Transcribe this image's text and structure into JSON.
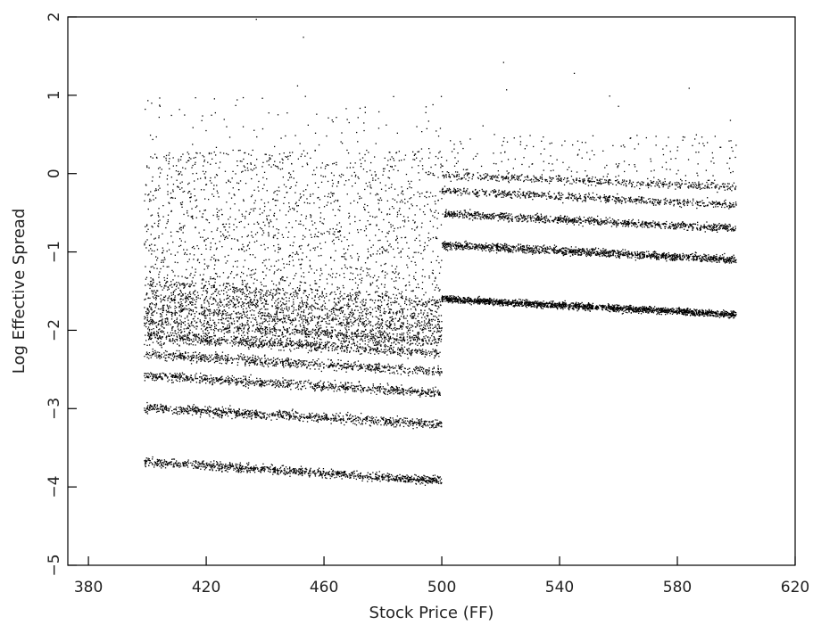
{
  "chart_data": {
    "type": "scatter",
    "title": "",
    "xlabel": "Stock Price (FF)",
    "ylabel": "Log Effective Spread",
    "xlim": [
      373,
      620
    ],
    "ylim": [
      -5,
      2
    ],
    "x_ticks": [
      380,
      420,
      460,
      500,
      540,
      580,
      620
    ],
    "y_ticks": [
      -5,
      -4,
      -3,
      -2,
      -1,
      0,
      1,
      2
    ],
    "grid": false,
    "legend": "none",
    "point_color": "#000000",
    "bands": [
      {
        "x_range": [
          399,
          500
        ],
        "y_start": -3.68,
        "y_end": -3.92,
        "density": 0.55,
        "spread": 0.028
      },
      {
        "x_range": [
          399,
          500
        ],
        "y_start": -2.99,
        "y_end": -3.2,
        "density": 0.5,
        "spread": 0.03
      },
      {
        "x_range": [
          399,
          500
        ],
        "y_start": -2.58,
        "y_end": -2.8,
        "density": 0.45,
        "spread": 0.03
      },
      {
        "x_range": [
          399,
          500
        ],
        "y_start": -2.3,
        "y_end": -2.53,
        "density": 0.42,
        "spread": 0.032
      },
      {
        "x_range": [
          399,
          500
        ],
        "y_start": -2.07,
        "y_end": -2.3,
        "density": 0.38,
        "spread": 0.035
      },
      {
        "x_range": [
          399,
          500
        ],
        "y_start": -1.89,
        "y_end": -2.13,
        "density": 0.3,
        "spread": 0.035
      },
      {
        "x_range": [
          399,
          500
        ],
        "y_start": -1.72,
        "y_end": -1.97,
        "density": 0.26,
        "spread": 0.038
      },
      {
        "x_range": [
          399,
          500
        ],
        "y_start": -1.56,
        "y_end": -1.82,
        "density": 0.22,
        "spread": 0.04
      },
      {
        "x_range": [
          399,
          500
        ],
        "y_start": -1.4,
        "y_end": -1.66,
        "density": 0.18,
        "spread": 0.04
      },
      {
        "x_range": [
          500,
          600
        ],
        "y_start": -1.6,
        "y_end": -1.8,
        "density": 1.0,
        "spread": 0.022
      },
      {
        "x_range": [
          500,
          600
        ],
        "y_start": -0.91,
        "y_end": -1.1,
        "density": 0.7,
        "spread": 0.025
      },
      {
        "x_range": [
          500,
          600
        ],
        "y_start": -0.51,
        "y_end": -0.7,
        "density": 0.5,
        "spread": 0.025
      },
      {
        "x_range": [
          500,
          600
        ],
        "y_start": -0.22,
        "y_end": -0.4,
        "density": 0.35,
        "spread": 0.025
      },
      {
        "x_range": [
          500,
          600
        ],
        "y_start": -0.02,
        "y_end": -0.17,
        "density": 0.25,
        "spread": 0.025
      }
    ],
    "scatter_regions": [
      {
        "x_range": [
          399,
          500
        ],
        "y_range": [
          -2.2,
          0.3
        ],
        "count": 2600
      },
      {
        "x_range": [
          399,
          500
        ],
        "y_range": [
          0.2,
          1.0
        ],
        "count": 90
      },
      {
        "x_range": [
          500,
          600
        ],
        "y_range": [
          -0.1,
          0.5
        ],
        "count": 220
      }
    ],
    "outliers": [
      {
        "x": 437,
        "y": 1.97
      },
      {
        "x": 453,
        "y": 1.74
      },
      {
        "x": 451,
        "y": 1.12
      },
      {
        "x": 521,
        "y": 1.42
      },
      {
        "x": 522,
        "y": 1.07
      },
      {
        "x": 545,
        "y": 1.28
      },
      {
        "x": 557,
        "y": 0.99
      },
      {
        "x": 584,
        "y": 1.09
      },
      {
        "x": 430,
        "y": 0.87
      },
      {
        "x": 497,
        "y": 0.88
      },
      {
        "x": 474,
        "y": 0.78
      },
      {
        "x": 404,
        "y": 0.72
      },
      {
        "x": 598,
        "y": 0.68
      },
      {
        "x": 560,
        "y": 0.86
      },
      {
        "x": 514,
        "y": 0.61
      },
      {
        "x": 466,
        "y": 0.52
      }
    ]
  }
}
